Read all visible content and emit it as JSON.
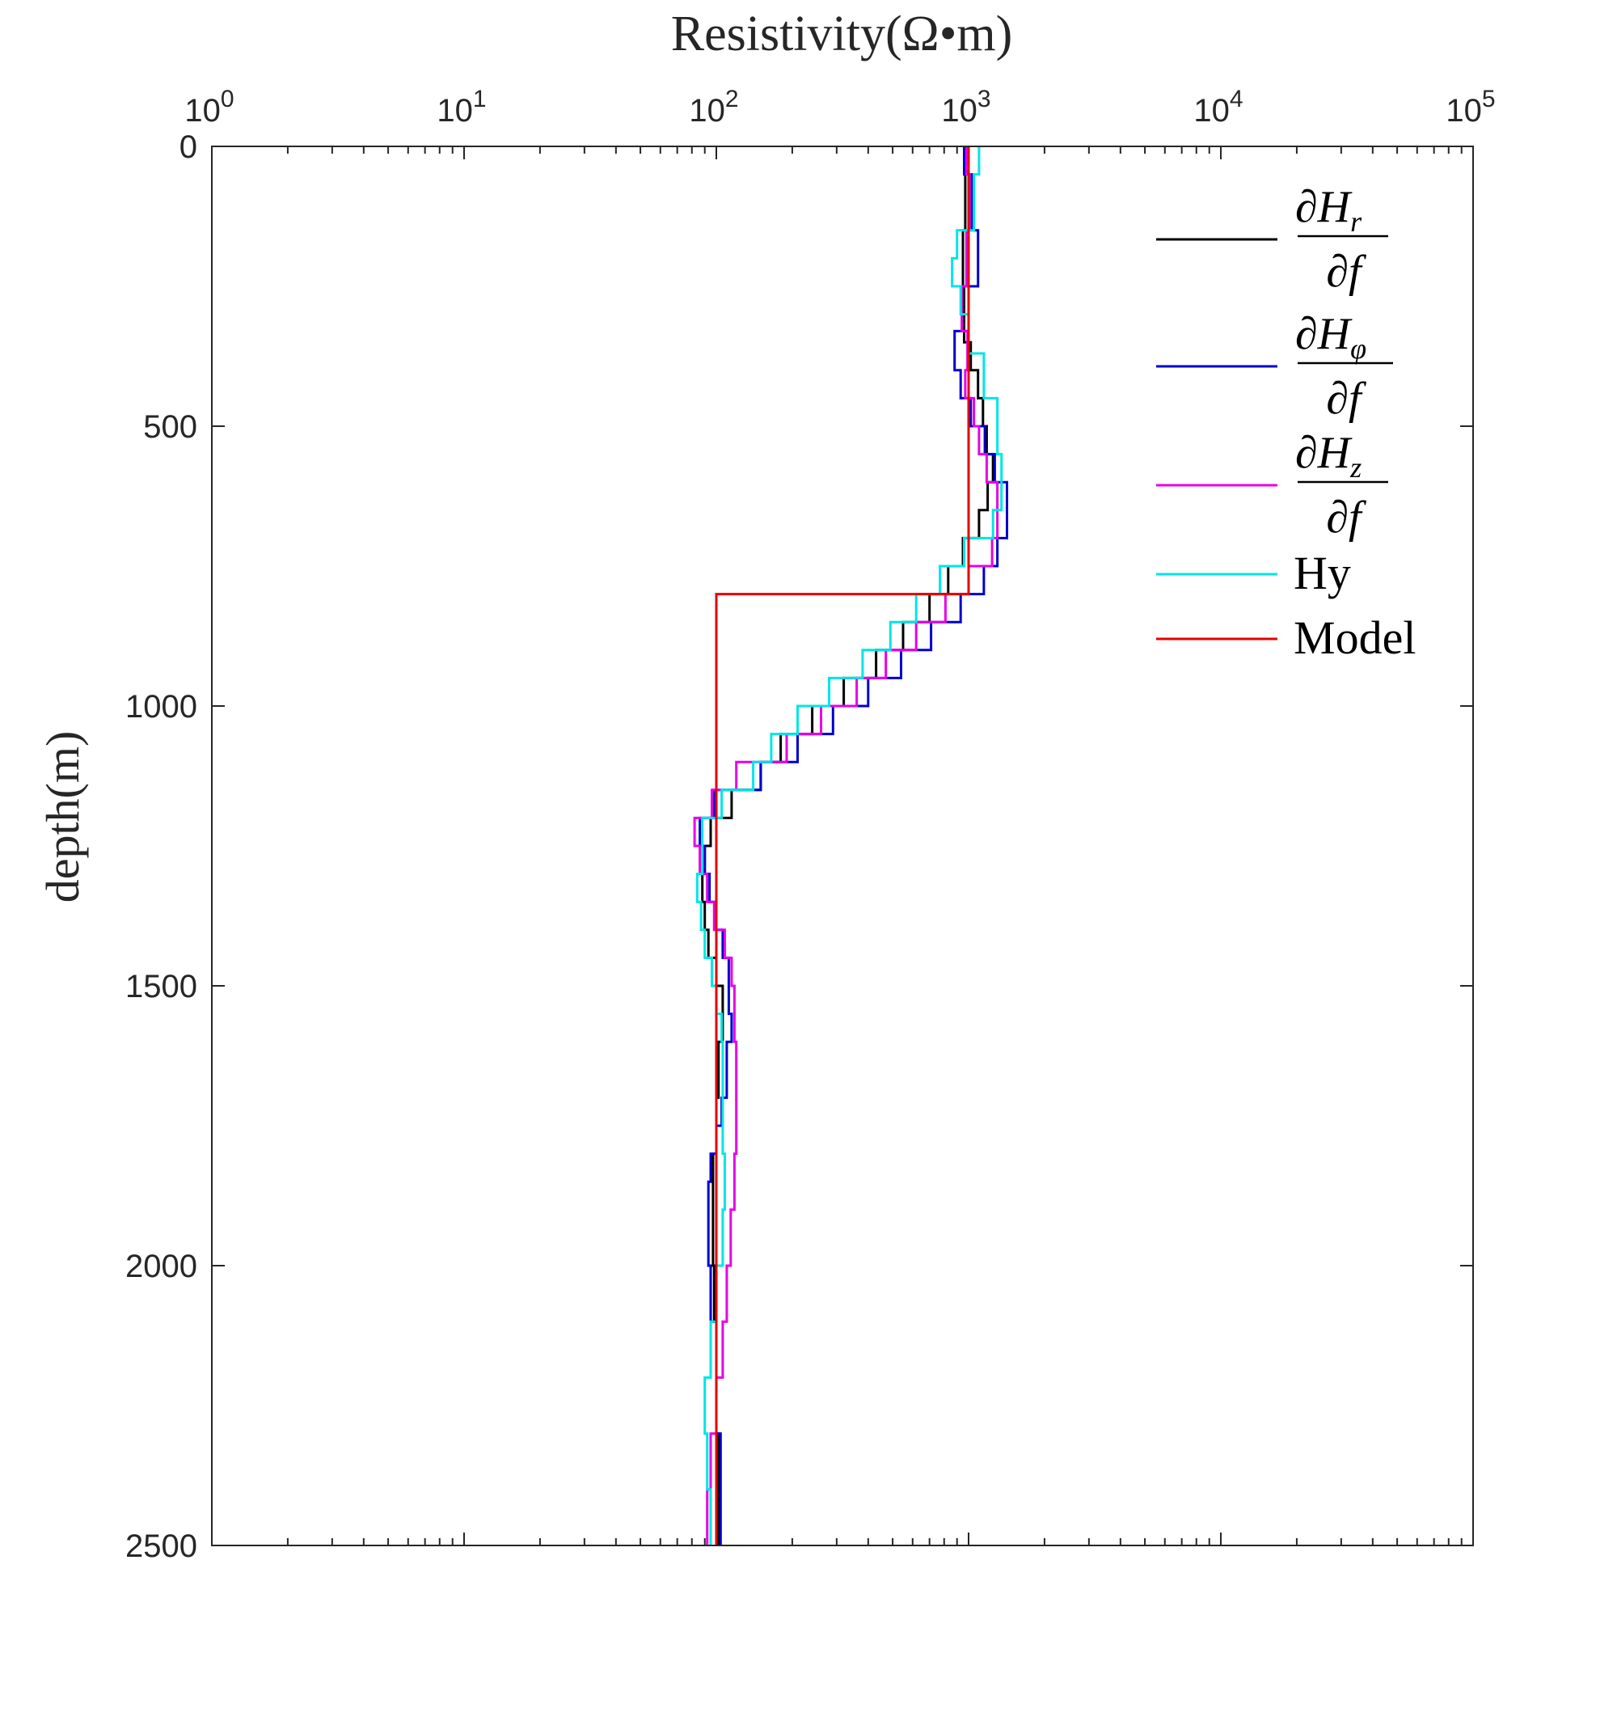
{
  "chart_data": {
    "type": "line",
    "title": "Resistivity(Ω•m)",
    "xlabel": "Resistivity(Ω•m)",
    "ylabel": "depth(m)",
    "x_scale": "log",
    "xlim": [
      1,
      100000
    ],
    "ylim": [
      0,
      2500
    ],
    "y_reversed": true,
    "x_axis_position": "top",
    "x_ticks": [
      {
        "value": 1,
        "base": "10",
        "exp": "0"
      },
      {
        "value": 10,
        "base": "10",
        "exp": "1"
      },
      {
        "value": 100,
        "base": "10",
        "exp": "2"
      },
      {
        "value": 1000,
        "base": "10",
        "exp": "3"
      },
      {
        "value": 10000,
        "base": "10",
        "exp": "4"
      },
      {
        "value": 100000,
        "base": "10",
        "exp": "5"
      }
    ],
    "y_ticks": [
      {
        "value": 0,
        "label": "0"
      },
      {
        "value": 500,
        "label": "500"
      },
      {
        "value": 1000,
        "label": "1000"
      },
      {
        "value": 1500,
        "label": "1500"
      },
      {
        "value": 2000,
        "label": "2000"
      },
      {
        "value": 2500,
        "label": "2500"
      }
    ],
    "grid": false,
    "legend_position": "top-right",
    "series": [
      {
        "key": "dHr",
        "legend": {
          "num": "∂H",
          "sub": "r",
          "den": "∂f"
        },
        "color": "#000000",
        "points": [
          [
            1000,
            0
          ],
          [
            1000,
            50
          ],
          [
            970,
            50
          ],
          [
            970,
            150
          ],
          [
            950,
            150
          ],
          [
            950,
            250
          ],
          [
            960,
            250
          ],
          [
            960,
            350
          ],
          [
            1020,
            350
          ],
          [
            1020,
            400
          ],
          [
            1090,
            400
          ],
          [
            1090,
            450
          ],
          [
            1140,
            450
          ],
          [
            1140,
            500
          ],
          [
            1180,
            500
          ],
          [
            1180,
            550
          ],
          [
            1250,
            550
          ],
          [
            1250,
            600
          ],
          [
            1190,
            600
          ],
          [
            1190,
            650
          ],
          [
            1100,
            650
          ],
          [
            1100,
            700
          ],
          [
            950,
            700
          ],
          [
            950,
            750
          ],
          [
            830,
            750
          ],
          [
            830,
            800
          ],
          [
            700,
            800
          ],
          [
            700,
            850
          ],
          [
            550,
            850
          ],
          [
            550,
            900
          ],
          [
            430,
            900
          ],
          [
            430,
            950
          ],
          [
            320,
            950
          ],
          [
            320,
            1000
          ],
          [
            240,
            1000
          ],
          [
            240,
            1050
          ],
          [
            180,
            1050
          ],
          [
            180,
            1100
          ],
          [
            150,
            1100
          ],
          [
            150,
            1150
          ],
          [
            115,
            1150
          ],
          [
            115,
            1200
          ],
          [
            95,
            1200
          ],
          [
            95,
            1250
          ],
          [
            90,
            1250
          ],
          [
            90,
            1300
          ],
          [
            88,
            1300
          ],
          [
            88,
            1350
          ],
          [
            90,
            1350
          ],
          [
            90,
            1400
          ],
          [
            93,
            1400
          ],
          [
            93,
            1450
          ],
          [
            100,
            1450
          ],
          [
            100,
            1500
          ],
          [
            106,
            1500
          ],
          [
            106,
            1600
          ],
          [
            102,
            1600
          ],
          [
            102,
            1700
          ],
          [
            100,
            1700
          ],
          [
            100,
            1800
          ],
          [
            97,
            1800
          ],
          [
            97,
            1900
          ],
          [
            97,
            2000
          ],
          [
            98,
            2000
          ],
          [
            98,
            2100
          ],
          [
            100,
            2100
          ],
          [
            100,
            2300
          ],
          [
            102,
            2300
          ],
          [
            102,
            2500
          ]
        ]
      },
      {
        "key": "dHphi",
        "legend": {
          "num": "∂H",
          "sub": "φ",
          "den": "∂f"
        },
        "color": "#0000CD",
        "points": [
          [
            960,
            0
          ],
          [
            960,
            50
          ],
          [
            1030,
            50
          ],
          [
            1030,
            150
          ],
          [
            1090,
            150
          ],
          [
            1090,
            250
          ],
          [
            1000,
            250
          ],
          [
            1000,
            330
          ],
          [
            880,
            330
          ],
          [
            880,
            400
          ],
          [
            930,
            400
          ],
          [
            930,
            450
          ],
          [
            1020,
            450
          ],
          [
            1020,
            500
          ],
          [
            1160,
            500
          ],
          [
            1160,
            550
          ],
          [
            1270,
            550
          ],
          [
            1270,
            600
          ],
          [
            1420,
            600
          ],
          [
            1420,
            700
          ],
          [
            1300,
            700
          ],
          [
            1300,
            750
          ],
          [
            1150,
            750
          ],
          [
            1150,
            800
          ],
          [
            930,
            800
          ],
          [
            930,
            850
          ],
          [
            710,
            850
          ],
          [
            710,
            900
          ],
          [
            540,
            900
          ],
          [
            540,
            950
          ],
          [
            400,
            950
          ],
          [
            400,
            1000
          ],
          [
            290,
            1000
          ],
          [
            290,
            1050
          ],
          [
            210,
            1050
          ],
          [
            210,
            1100
          ],
          [
            150,
            1100
          ],
          [
            150,
            1150
          ],
          [
            98,
            1150
          ],
          [
            98,
            1200
          ],
          [
            86,
            1200
          ],
          [
            86,
            1250
          ],
          [
            90,
            1250
          ],
          [
            90,
            1300
          ],
          [
            94,
            1300
          ],
          [
            94,
            1350
          ],
          [
            100,
            1350
          ],
          [
            100,
            1400
          ],
          [
            106,
            1400
          ],
          [
            106,
            1450
          ],
          [
            112,
            1450
          ],
          [
            112,
            1550
          ],
          [
            115,
            1550
          ],
          [
            115,
            1600
          ],
          [
            110,
            1600
          ],
          [
            110,
            1700
          ],
          [
            105,
            1700
          ],
          [
            105,
            1750
          ],
          [
            100,
            1750
          ],
          [
            100,
            1800
          ],
          [
            95,
            1800
          ],
          [
            95,
            1850
          ],
          [
            93,
            1850
          ],
          [
            93,
            2000
          ],
          [
            95,
            2000
          ],
          [
            95,
            2100
          ],
          [
            100,
            2100
          ],
          [
            100,
            2300
          ],
          [
            104,
            2300
          ],
          [
            104,
            2500
          ]
        ]
      },
      {
        "key": "dHz",
        "legend": {
          "num": "∂H",
          "sub": "z",
          "den": "∂f"
        },
        "color": "#E600E6",
        "points": [
          [
            980,
            0
          ],
          [
            980,
            50
          ],
          [
            1010,
            50
          ],
          [
            1010,
            150
          ],
          [
            980,
            150
          ],
          [
            980,
            250
          ],
          [
            940,
            250
          ],
          [
            940,
            330
          ],
          [
            990,
            330
          ],
          [
            990,
            400
          ],
          [
            970,
            400
          ],
          [
            970,
            450
          ],
          [
            1050,
            450
          ],
          [
            1050,
            500
          ],
          [
            1100,
            500
          ],
          [
            1100,
            550
          ],
          [
            1180,
            550
          ],
          [
            1180,
            600
          ],
          [
            1300,
            600
          ],
          [
            1300,
            700
          ],
          [
            1240,
            700
          ],
          [
            1240,
            750
          ],
          [
            1000,
            750
          ],
          [
            1000,
            800
          ],
          [
            810,
            800
          ],
          [
            810,
            850
          ],
          [
            620,
            850
          ],
          [
            620,
            900
          ],
          [
            470,
            900
          ],
          [
            470,
            950
          ],
          [
            360,
            950
          ],
          [
            360,
            1000
          ],
          [
            260,
            1000
          ],
          [
            260,
            1050
          ],
          [
            190,
            1050
          ],
          [
            190,
            1100
          ],
          [
            120,
            1100
          ],
          [
            120,
            1150
          ],
          [
            96,
            1150
          ],
          [
            96,
            1200
          ],
          [
            82,
            1200
          ],
          [
            82,
            1250
          ],
          [
            86,
            1250
          ],
          [
            86,
            1300
          ],
          [
            92,
            1300
          ],
          [
            92,
            1350
          ],
          [
            98,
            1350
          ],
          [
            98,
            1400
          ],
          [
            108,
            1400
          ],
          [
            108,
            1450
          ],
          [
            115,
            1450
          ],
          [
            115,
            1500
          ],
          [
            118,
            1500
          ],
          [
            118,
            1600
          ],
          [
            120,
            1600
          ],
          [
            120,
            1800
          ],
          [
            118,
            1800
          ],
          [
            118,
            1900
          ],
          [
            114,
            1900
          ],
          [
            114,
            2000
          ],
          [
            110,
            2000
          ],
          [
            110,
            2100
          ],
          [
            106,
            2100
          ],
          [
            106,
            2200
          ],
          [
            100,
            2200
          ],
          [
            100,
            2300
          ],
          [
            95,
            2300
          ],
          [
            95,
            2400
          ],
          [
            92,
            2400
          ],
          [
            92,
            2500
          ]
        ]
      },
      {
        "key": "Hy",
        "legend": {
          "text": "Hy"
        },
        "color": "#00E5E5",
        "points": [
          [
            1100,
            0
          ],
          [
            1100,
            50
          ],
          [
            1050,
            50
          ],
          [
            1050,
            150
          ],
          [
            900,
            150
          ],
          [
            900,
            200
          ],
          [
            860,
            200
          ],
          [
            860,
            250
          ],
          [
            930,
            250
          ],
          [
            930,
            300
          ],
          [
            1000,
            300
          ],
          [
            1000,
            370
          ],
          [
            1150,
            370
          ],
          [
            1150,
            450
          ],
          [
            1300,
            450
          ],
          [
            1300,
            550
          ],
          [
            1350,
            550
          ],
          [
            1350,
            650
          ],
          [
            1250,
            650
          ],
          [
            1250,
            700
          ],
          [
            960,
            700
          ],
          [
            960,
            750
          ],
          [
            770,
            750
          ],
          [
            770,
            800
          ],
          [
            620,
            800
          ],
          [
            620,
            850
          ],
          [
            490,
            850
          ],
          [
            490,
            900
          ],
          [
            380,
            900
          ],
          [
            380,
            950
          ],
          [
            280,
            950
          ],
          [
            280,
            1000
          ],
          [
            210,
            1000
          ],
          [
            210,
            1050
          ],
          [
            165,
            1050
          ],
          [
            165,
            1100
          ],
          [
            140,
            1100
          ],
          [
            140,
            1150
          ],
          [
            105,
            1150
          ],
          [
            105,
            1200
          ],
          [
            88,
            1200
          ],
          [
            88,
            1300
          ],
          [
            84,
            1300
          ],
          [
            84,
            1350
          ],
          [
            87,
            1350
          ],
          [
            87,
            1400
          ],
          [
            90,
            1400
          ],
          [
            90,
            1450
          ],
          [
            96,
            1450
          ],
          [
            96,
            1500
          ],
          [
            100,
            1500
          ],
          [
            100,
            1550
          ],
          [
            105,
            1550
          ],
          [
            105,
            1600
          ],
          [
            106,
            1600
          ],
          [
            106,
            1800
          ],
          [
            108,
            1800
          ],
          [
            108,
            1900
          ],
          [
            106,
            1900
          ],
          [
            106,
            2000
          ],
          [
            100,
            2000
          ],
          [
            100,
            2100
          ],
          [
            95,
            2100
          ],
          [
            95,
            2200
          ],
          [
            90,
            2200
          ],
          [
            90,
            2300
          ],
          [
            92,
            2300
          ],
          [
            92,
            2400
          ],
          [
            95,
            2400
          ],
          [
            95,
            2500
          ]
        ]
      },
      {
        "key": "Model",
        "legend": {
          "text": "Model"
        },
        "color": "#E60000",
        "points": [
          [
            1000,
            0
          ],
          [
            1000,
            800
          ],
          [
            100,
            800
          ],
          [
            100,
            2500
          ]
        ]
      }
    ]
  }
}
